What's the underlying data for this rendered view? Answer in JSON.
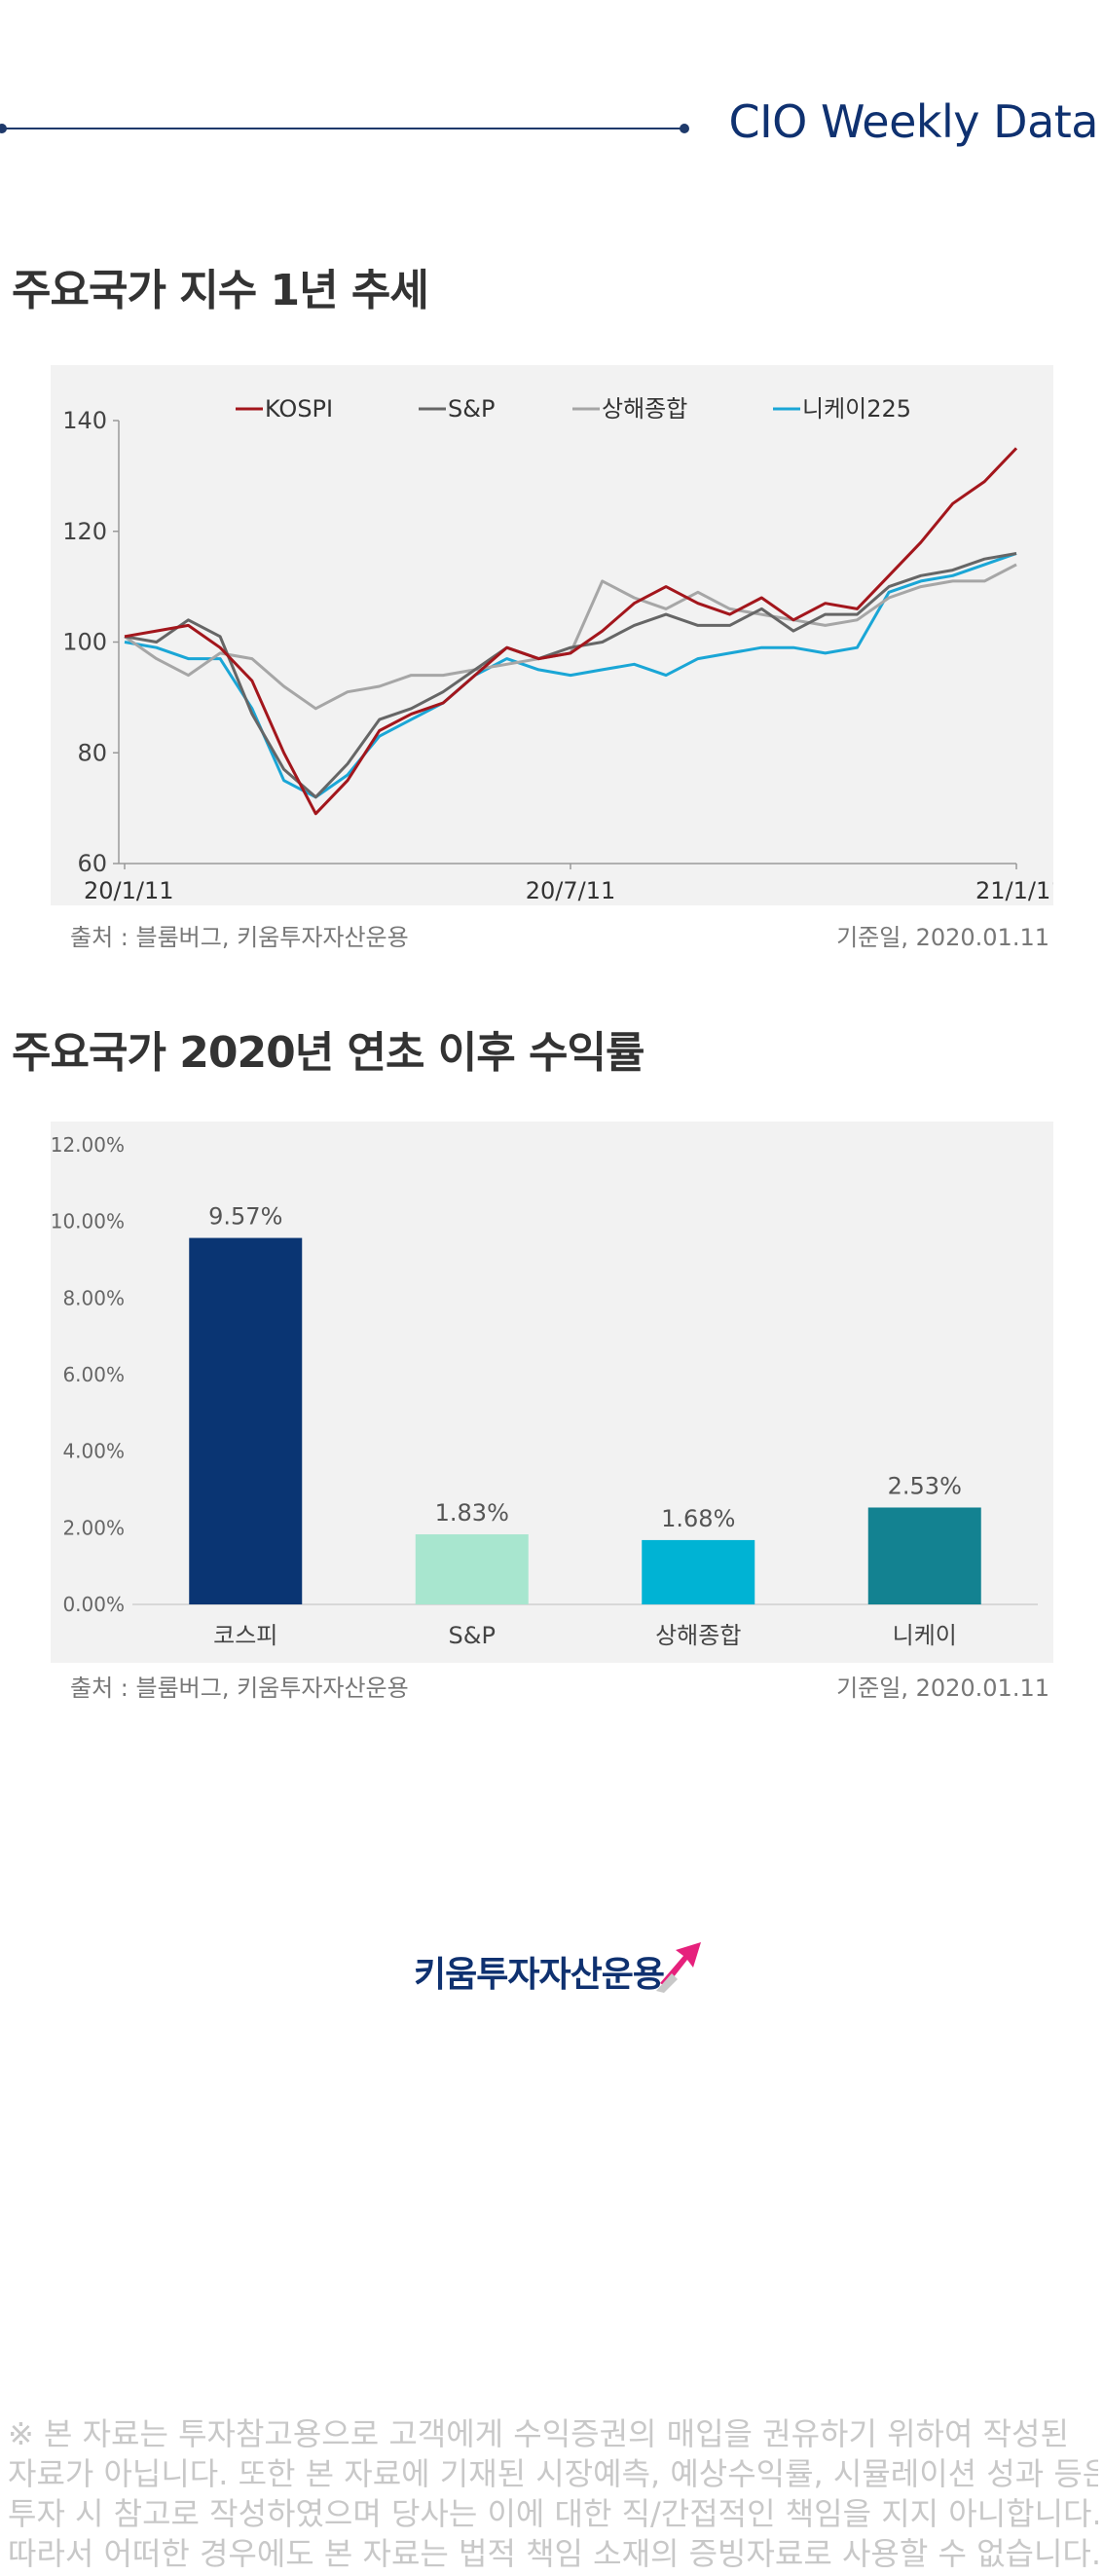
{
  "header": {
    "title": "CIO Weekly Data"
  },
  "section1": {
    "title": "주요국가 지수 1년 추세",
    "source": "출처 : 블룸버그, 키움투자자산운용",
    "date": "기준일, 2020.01.11"
  },
  "section2": {
    "title": "주요국가 2020년 연초 이후 수익률",
    "source": "출처 : 블룸버그, 키움투자자산운용",
    "date": "기준일, 2020.01.11"
  },
  "logo": {
    "text": "키움투자자산운용"
  },
  "disclaimer": {
    "lines": [
      "※ 본 자료는 투자참고용으로 고객에게 수익증권의 매입을 권유하기 위하여 작성된",
      "자료가 아닙니다. 또한 본 자료에 기재된 시장예측, 예상수익률, 시뮬레이션 성과 등은",
      "투자 시 참고로 작성하였으며 당사는 이에 대한 직/간접적인 책임을 지지 아니합니다.",
      "따라서 어떠한 경우에도 본 자료는 법적 책임 소재의 증빙자료로 사용할 수 없습니다."
    ]
  },
  "chart_data": [
    {
      "type": "line",
      "title": "주요국가 지수 1년 추세",
      "x_ticks": [
        "20/1/11",
        "20/7/11",
        "21/1/11"
      ],
      "ylim": [
        60,
        140
      ],
      "y_ticks": [
        60,
        80,
        100,
        120,
        140
      ],
      "legend_position": "top",
      "grid": false,
      "x": [
        "20/1/11",
        "20/1/25",
        "20/2/8",
        "20/2/22",
        "20/3/7",
        "20/3/14",
        "20/3/21",
        "20/3/28",
        "20/4/11",
        "20/4/25",
        "20/5/9",
        "20/5/23",
        "20/6/6",
        "20/6/20",
        "20/7/4",
        "20/7/18",
        "20/8/1",
        "20/8/15",
        "20/8/29",
        "20/9/12",
        "20/9/26",
        "20/10/10",
        "20/10/24",
        "20/11/7",
        "20/11/21",
        "20/12/5",
        "20/12/19",
        "21/1/2",
        "21/1/11"
      ],
      "series": [
        {
          "name": "KOSPI",
          "color": "#a3161c",
          "values": [
            101,
            102,
            103,
            99,
            93,
            80,
            69,
            75,
            84,
            87,
            89,
            94,
            99,
            97,
            98,
            102,
            107,
            110,
            107,
            105,
            108,
            104,
            107,
            106,
            112,
            118,
            125,
            129,
            135
          ]
        },
        {
          "name": "S&P",
          "color": "#666666",
          "values": [
            101,
            100,
            104,
            101,
            87,
            77,
            72,
            78,
            86,
            88,
            91,
            95,
            99,
            97,
            99,
            100,
            103,
            105,
            103,
            103,
            106,
            102,
            105,
            105,
            110,
            112,
            113,
            115,
            116
          ]
        },
        {
          "name": "상해종합",
          "color": "#a6a6a6",
          "values": [
            101,
            97,
            94,
            98,
            97,
            92,
            88,
            91,
            92,
            94,
            94,
            95,
            96,
            97,
            98,
            111,
            108,
            106,
            109,
            106,
            105,
            104,
            103,
            104,
            108,
            110,
            111,
            111,
            114
          ]
        },
        {
          "name": "니케이225",
          "color": "#1aa6d6",
          "values": [
            100,
            99,
            97,
            97,
            88,
            75,
            72,
            76,
            83,
            86,
            89,
            94,
            97,
            95,
            94,
            95,
            96,
            94,
            97,
            98,
            99,
            99,
            98,
            99,
            109,
            111,
            112,
            114,
            116
          ]
        }
      ]
    },
    {
      "type": "bar",
      "title": "주요국가 2020년 연초 이후 수익률",
      "categories": [
        "코스피",
        "S&P",
        "상해종합",
        "니케이"
      ],
      "values": [
        9.57,
        1.83,
        1.68,
        2.53
      ],
      "data_labels": [
        "9.57%",
        "1.83%",
        "1.68%",
        "2.53%"
      ],
      "colors": [
        "#0a3573",
        "#a8e6cf",
        "#00b3d4",
        "#138291"
      ],
      "ylim": [
        0,
        12
      ],
      "y_ticks": [
        "0.00%",
        "2.00%",
        "4.00%",
        "6.00%",
        "8.00%",
        "10.00%",
        "12.00%"
      ]
    }
  ]
}
